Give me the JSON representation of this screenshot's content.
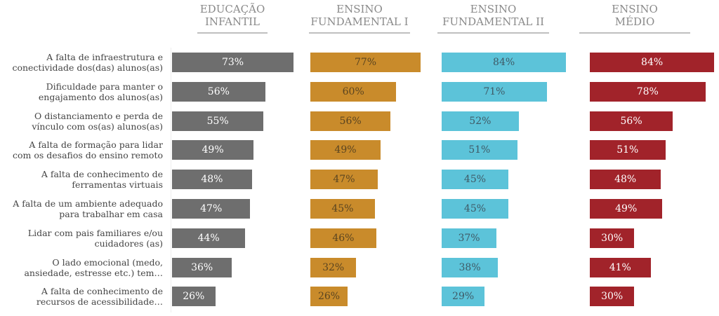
{
  "chart_data": {
    "type": "bar",
    "orientation": "horizontal",
    "categories": [
      "A falta de infraestrutura e conectividade dos(das) alunos(as)",
      "Dificuldade para manter o engajamento dos alunos(as)",
      "O distanciamento e perda de vínculo com os(as) alunos(as)",
      "A falta de formação para lidar com os desafios do ensino remoto",
      "A falta de conhecimento de ferramentas virtuais",
      "A falta de um ambiente adequado para trabalhar em casa",
      "Lidar com pais familiares e/ou cuidadores (as)",
      "O lado emocional (medo, ansiedade, estresse etc.) tem…",
      "A falta de conhecimento de recursos de acessibilidade…"
    ],
    "category_lines": [
      [
        "A falta de infraestrutura e",
        "conectividade dos(das) alunos(as)"
      ],
      [
        "Dificuldade para manter o",
        "engajamento dos alunos(as)"
      ],
      [
        "O distanciamento e perda de",
        "vínculo com os(as) alunos(as)"
      ],
      [
        "A falta de formação para lidar",
        "com os desafios do ensino remoto"
      ],
      [
        "A falta de conhecimento de",
        "ferramentas virtuais"
      ],
      [
        "A falta de um ambiente adequado",
        "para trabalhar em casa"
      ],
      [
        "Lidar com pais familiares e/ou",
        "cuidadores (as)"
      ],
      [
        "O lado emocional (medo,",
        "ansiedade, estresse etc.) tem…"
      ],
      [
        "A falta de conhecimento de",
        "recursos de acessibilidade…"
      ]
    ],
    "series": [
      {
        "name": "EDUCAÇÃO INFANTIL",
        "title_lines": [
          "EDUCAÇÃO",
          "INFANTIL"
        ],
        "color": "#6e6e6e",
        "text_color": "#ffffff",
        "values": [
          73,
          56,
          55,
          49,
          48,
          47,
          44,
          36,
          26
        ]
      },
      {
        "name": "ENSINO FUNDAMENTAL I",
        "title_lines": [
          "ENSINO",
          "FUNDAMENTAL I"
        ],
        "color": "#c98b2b",
        "text_color": "#5a4420",
        "values": [
          77,
          60,
          56,
          49,
          47,
          45,
          46,
          32,
          26
        ]
      },
      {
        "name": "ENSINO FUNDAMENTAL II",
        "title_lines": [
          "ENSINO",
          "FUNDAMENTAL II"
        ],
        "color": "#5cc3d9",
        "text_color": "#3f5a66",
        "values": [
          84,
          71,
          52,
          51,
          45,
          45,
          37,
          38,
          29
        ]
      },
      {
        "name": "ENSINO MÉDIO",
        "title_lines": [
          "ENSINO",
          "MÉDIO"
        ],
        "color": "#a1232a",
        "text_color": "#ffffff",
        "values": [
          84,
          78,
          56,
          51,
          48,
          49,
          30,
          41,
          30
        ]
      }
    ],
    "value_suffix": "%",
    "xlim": [
      0,
      100
    ],
    "grid": false,
    "legend": "none"
  }
}
